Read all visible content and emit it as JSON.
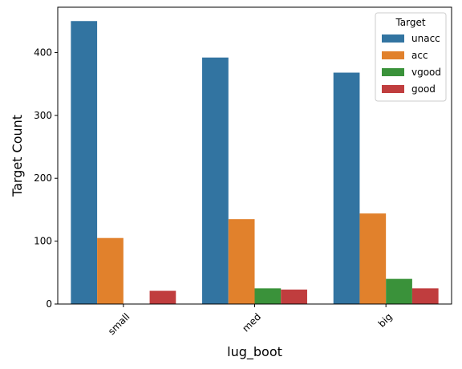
{
  "chart_data": {
    "type": "bar",
    "title": "",
    "xlabel": "lug_boot",
    "ylabel": "Target Count",
    "categories": [
      "small",
      "med",
      "big"
    ],
    "series": [
      {
        "name": "unacc",
        "color": "#3274a1",
        "values": [
          450,
          392,
          368
        ]
      },
      {
        "name": "acc",
        "color": "#e1812c",
        "values": [
          105,
          135,
          144
        ]
      },
      {
        "name": "vgood",
        "color": "#3a923a",
        "values": [
          0,
          25,
          40
        ]
      },
      {
        "name": "good",
        "color": "#c03d3e",
        "values": [
          21,
          23,
          25
        ]
      }
    ],
    "ylim": [
      0,
      472
    ],
    "yticks": [
      0,
      100,
      200,
      300,
      400
    ],
    "xtick_rotation": 45,
    "grid": false,
    "legend": {
      "title": "Target",
      "placement": "top-right"
    }
  }
}
